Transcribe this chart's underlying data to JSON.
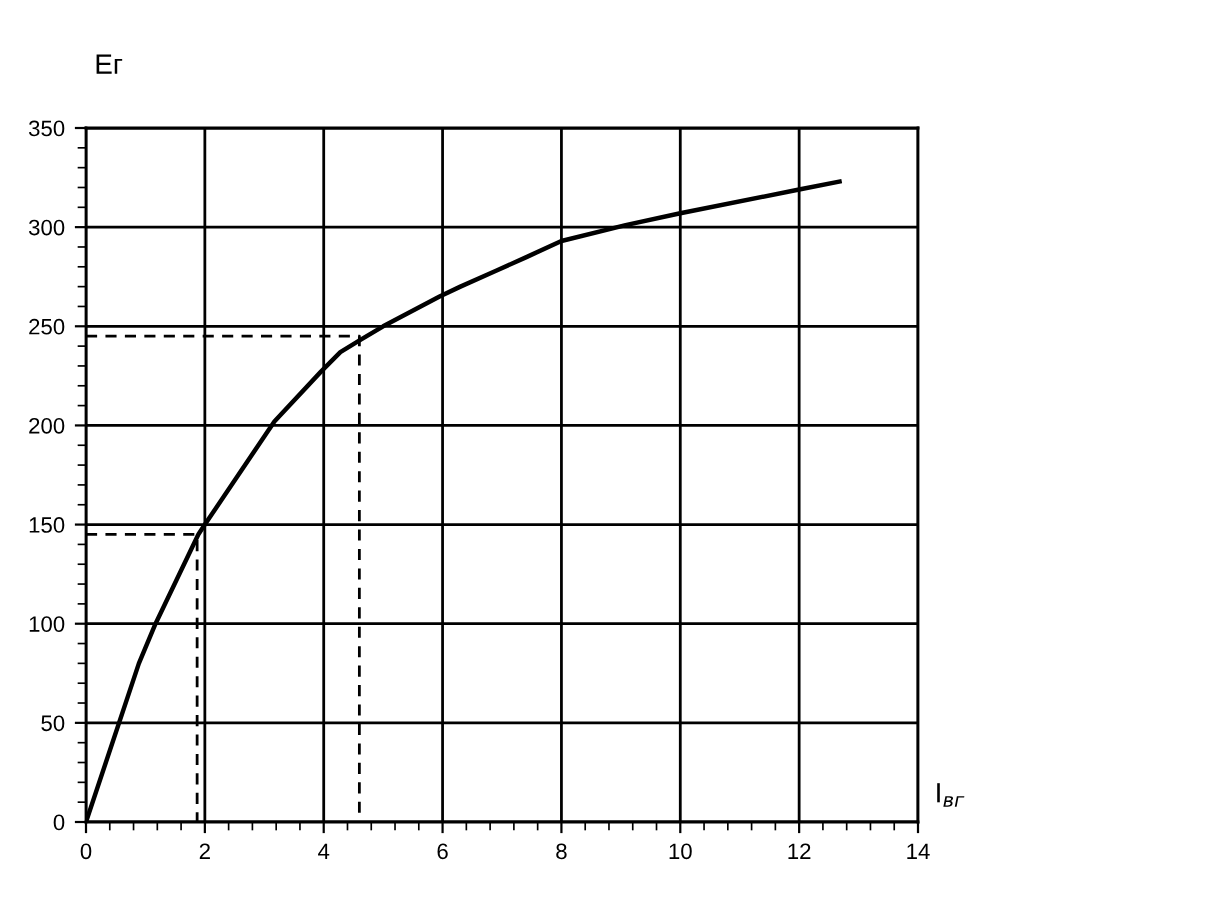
{
  "chart_data": {
    "type": "line",
    "xlabel": "I$_{вг}$",
    "ylabel": "Eг",
    "series": [
      {
        "color": "#000000",
        "line_style": "solid",
        "x": [
          0,
          0.89,
          1.17,
          1.89,
          2,
          3.17,
          3.95,
          4.28,
          4.61,
          5,
          5.95,
          6.3,
          6.9,
          7.42,
          8,
          9.08,
          10,
          12,
          12.68
        ],
        "values": [
          0,
          80,
          100,
          145,
          150,
          202,
          227,
          237,
          243,
          250,
          265,
          270,
          278,
          285,
          293,
          301,
          307,
          319,
          323
        ]
      },
      {
        "color": "#000000",
        "line_style": "dashed",
        "x": [
          0,
          1.87,
          1.87
        ],
        "values": [
          145,
          145,
          0
        ]
      },
      {
        "color": "#000000",
        "line_style": "dashed",
        "x": [
          0,
          4.6,
          4.6
        ],
        "values": [
          245,
          245,
          0
        ]
      }
    ],
    "xlim": [
      0,
      14
    ],
    "ylim": [
      0,
      350
    ],
    "xticks": [
      0,
      2,
      4,
      6,
      8,
      10,
      12,
      14
    ],
    "yticks": [
      0,
      50,
      100,
      150,
      200,
      250,
      300,
      350
    ],
    "grid": true,
    "marker": "none",
    "legend": false
  }
}
